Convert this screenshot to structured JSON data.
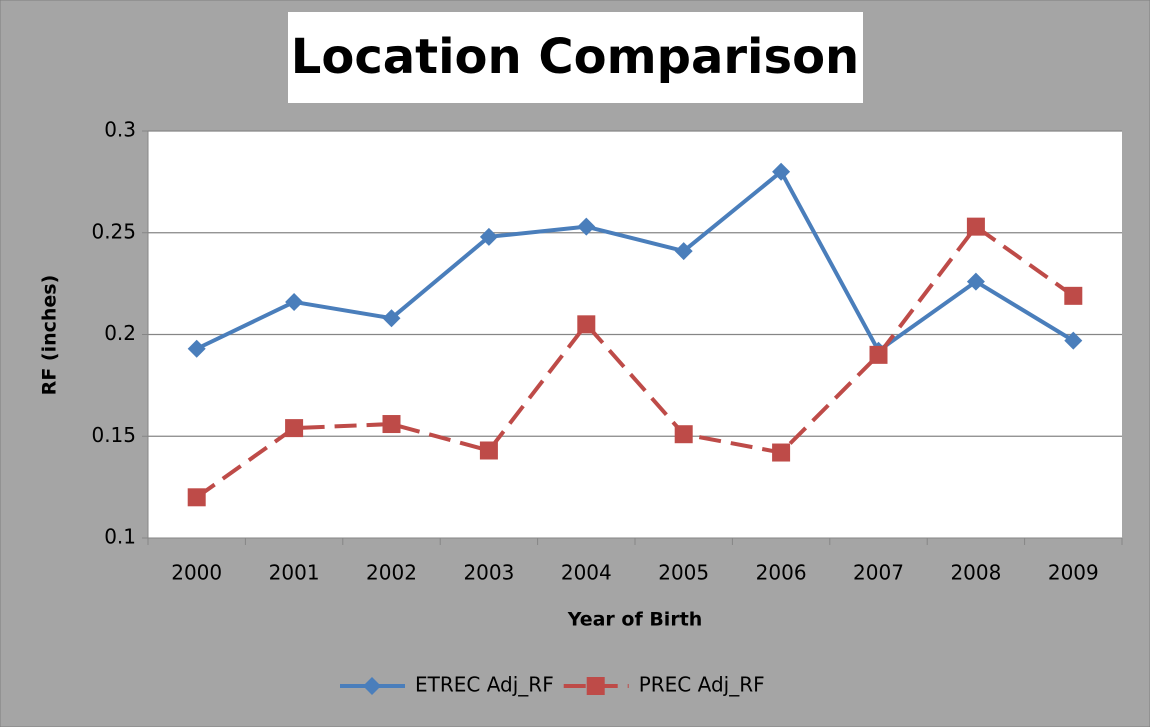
{
  "chart_data": {
    "type": "line",
    "title": "Location Comparison",
    "x_label": "Year of Birth",
    "y_label": "RF (inches)",
    "categories": [
      "2000",
      "2001",
      "2002",
      "2003",
      "2004",
      "2005",
      "2006",
      "2007",
      "2008",
      "2009"
    ],
    "series": [
      {
        "name": "ETREC Adj_RF",
        "color": "#4a7ebb",
        "marker": "diamond",
        "dashed": false,
        "values": [
          0.193,
          0.216,
          0.208,
          0.248,
          0.253,
          0.241,
          0.28,
          0.192,
          0.226,
          0.197
        ]
      },
      {
        "name": "PREC Adj_RF",
        "color": "#be4b48",
        "marker": "square",
        "dashed": true,
        "values": [
          0.12,
          0.154,
          0.156,
          0.143,
          0.205,
          0.151,
          0.142,
          0.19,
          0.253,
          0.219
        ]
      }
    ],
    "ylim": [
      0.1,
      0.3
    ],
    "yticks": [
      0.1,
      0.15,
      0.2,
      0.25,
      0.3
    ],
    "grid": true,
    "legend": "bottom"
  }
}
